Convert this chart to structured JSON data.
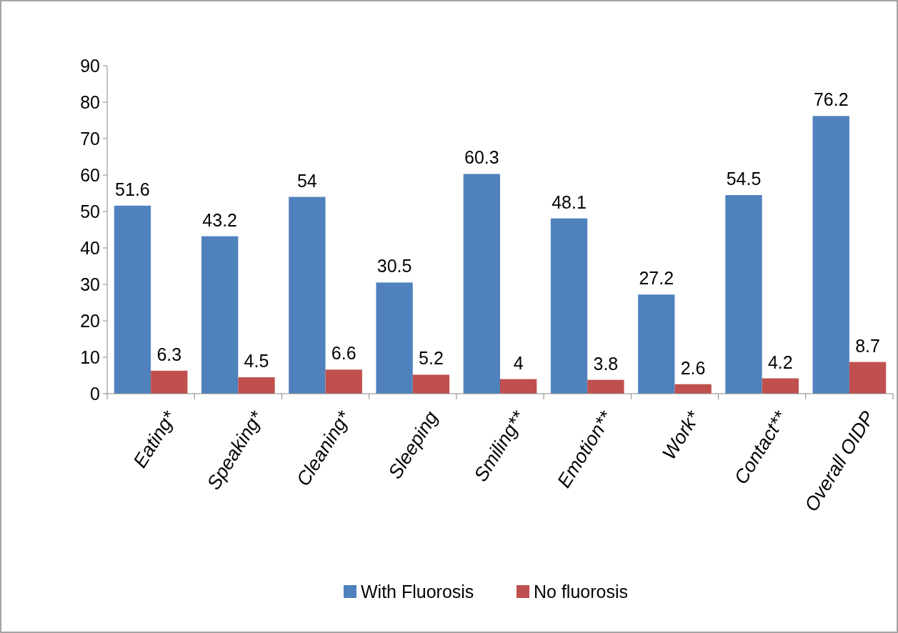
{
  "chart_data": {
    "type": "bar",
    "categories": [
      "Eating*",
      "Speaking*",
      "Cleaning*",
      "Sleeping",
      "Smiling**",
      "Emotion**",
      "Work*",
      "Contact**",
      "Overall OIDP"
    ],
    "series": [
      {
        "name": "With Fluorosis",
        "color": "#4f81bd",
        "values": [
          51.6,
          43.2,
          54,
          30.5,
          60.3,
          48.1,
          27.2,
          54.5,
          76.2
        ]
      },
      {
        "name": "No fluorosis",
        "color": "#c0504d",
        "values": [
          6.3,
          4.5,
          6.6,
          5.2,
          4,
          3.8,
          2.6,
          4.2,
          8.7
        ]
      }
    ],
    "ylim": [
      0,
      90
    ],
    "yticks": [
      0,
      10,
      20,
      30,
      40,
      50,
      60,
      70,
      80,
      90
    ],
    "data_labels": true,
    "legend": "bottom",
    "grid": false
  }
}
